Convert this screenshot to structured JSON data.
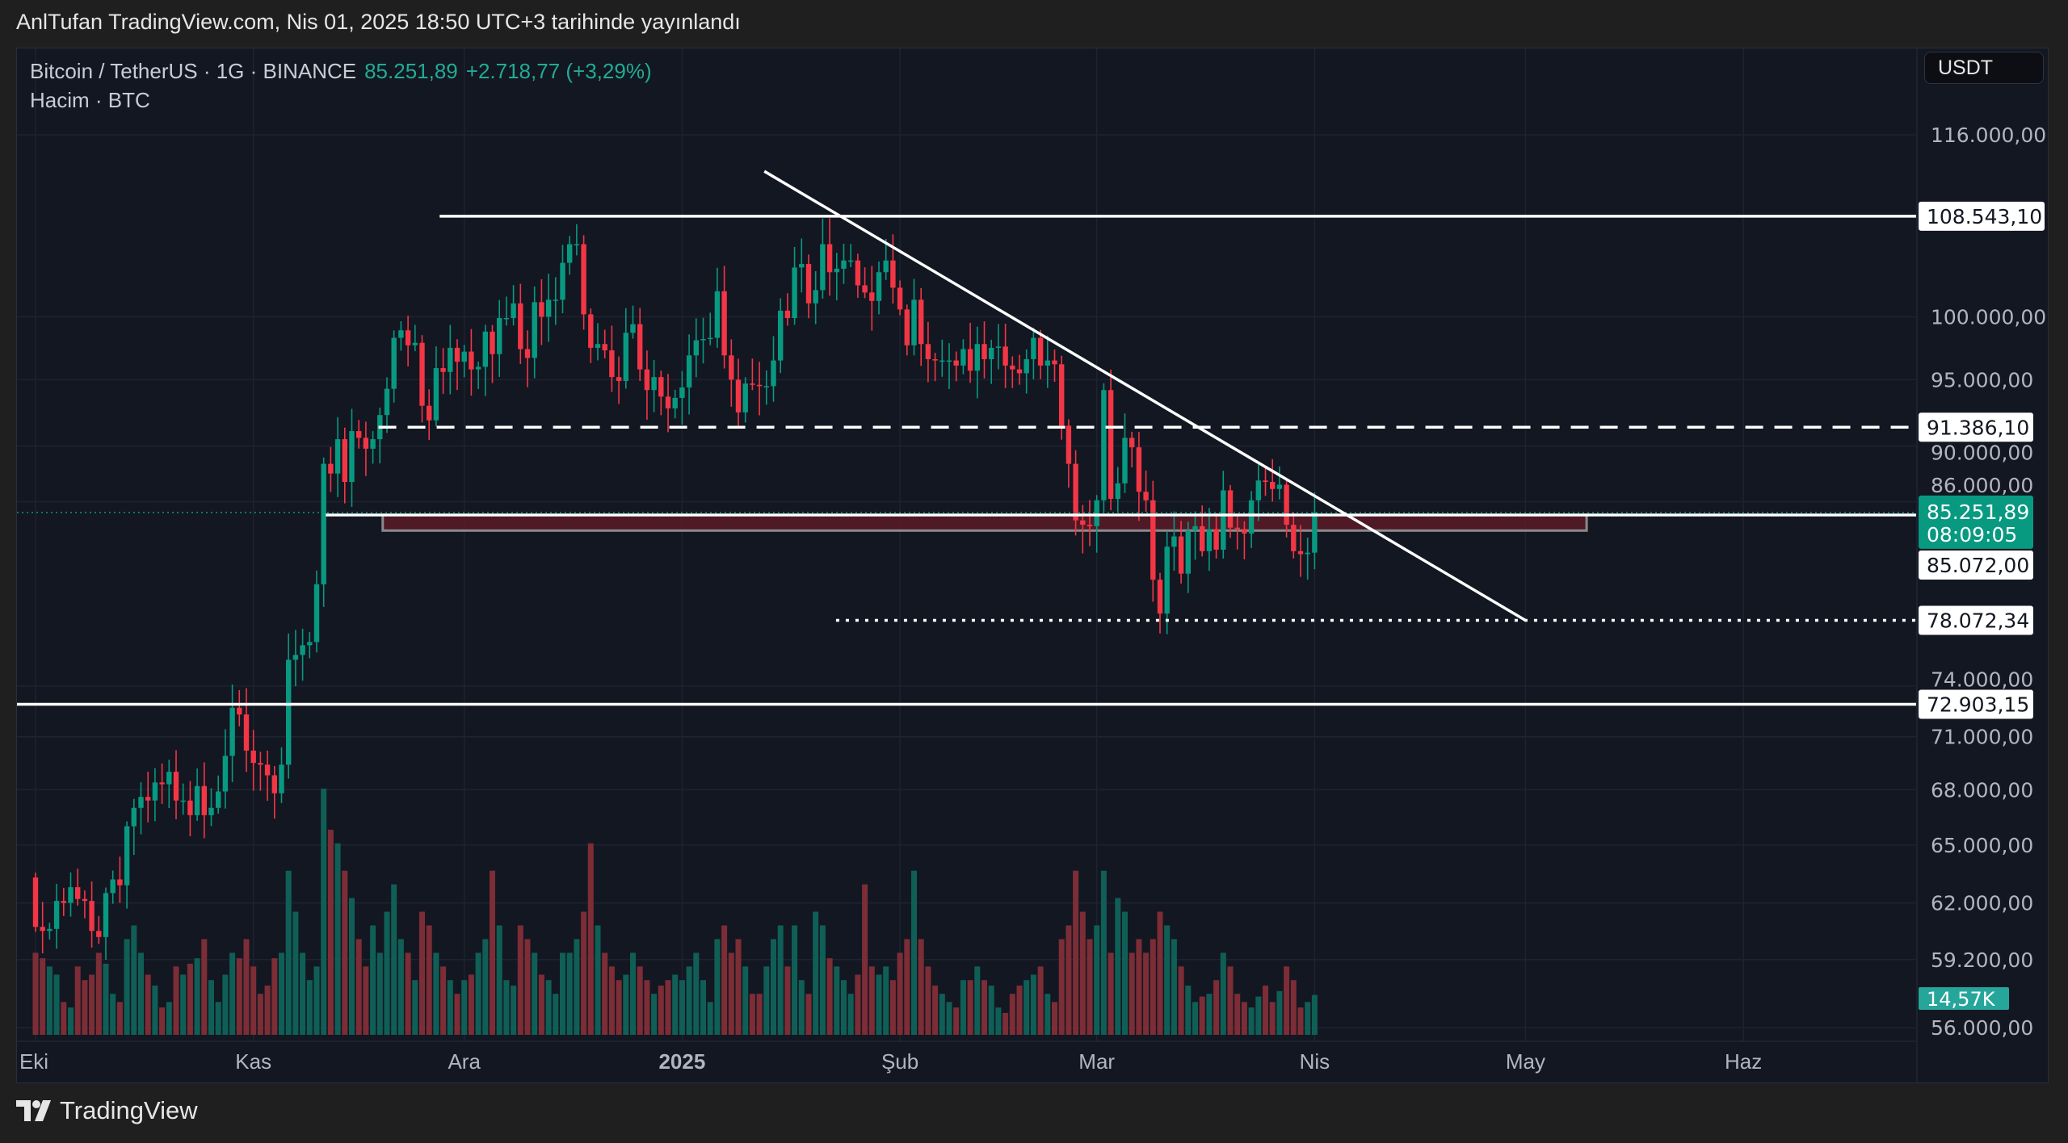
{
  "header": {
    "published": "AnlTufan TradingView.com, Nis 01, 2025 18:50 UTC+3 tarihinde yayınlandı"
  },
  "legend": {
    "symbol": "Bitcoin / TetherUS · 1G · BINANCE",
    "last": "85.251,89",
    "change": "+2.718,77 (+3,29%)",
    "volume_label": "Hacim · BTC"
  },
  "currency_button": "USDT",
  "footer": {
    "brand": "TradingView"
  },
  "colors": {
    "up": "#089981",
    "down": "#f23645",
    "vol_up": "#0f5f57",
    "vol_down": "#7c2d36",
    "pane": "#131722",
    "zone": "#5b1a27"
  },
  "chart_data": {
    "type": "candlestick",
    "title": "Bitcoin / TetherUS · 1G · BINANCE",
    "scale": "log",
    "ylim": [
      54000,
      120000
    ],
    "start_date": "2024-10-01",
    "first_open": 63.3,
    "close_unit": "thousand USDT",
    "closes": [
      60.8,
      60.6,
      60.7,
      62.1,
      62.0,
      62.8,
      62.2,
      62.1,
      60.6,
      60.3,
      62.5,
      63.2,
      62.9,
      66.0,
      67.0,
      67.6,
      67.4,
      68.4,
      68.3,
      69.0,
      67.4,
      67.4,
      66.6,
      68.2,
      66.6,
      67.0,
      67.9,
      69.9,
      72.7,
      72.3,
      70.2,
      69.5,
      69.4,
      68.8,
      67.8,
      69.4,
      75.6,
      75.9,
      76.5,
      76.7,
      80.4,
      88.7,
      88.0,
      90.5,
      87.4,
      91.1,
      90.6,
      89.8,
      90.5,
      92.3,
      94.3,
      98.3,
      98.9,
      97.7,
      97.9,
      93.0,
      91.9,
      95.9,
      95.6,
      97.5,
      96.4,
      97.2,
      95.8,
      96.0,
      98.8,
      97.0,
      99.9,
      99.9,
      101.1,
      97.4,
      96.7,
      101.2,
      100.0,
      101.4,
      101.4,
      104.5,
      106.1,
      106.1,
      100.2,
      97.5,
      97.8,
      97.3,
      95.2,
      94.9,
      98.7,
      99.4,
      95.8,
      94.2,
      95.2,
      93.7,
      92.8,
      93.6,
      94.4,
      96.9,
      98.1,
      98.2,
      98.3,
      102.1,
      96.9,
      95.0,
      92.5,
      94.7,
      94.6,
      94.5,
      94.5,
      96.5,
      100.5,
      99.9,
      104.1,
      104.4,
      101.1,
      102.2,
      106.1,
      103.7,
      104.0,
      104.7,
      104.7,
      102.6,
      102.0,
      101.3,
      103.7,
      104.7,
      102.4,
      100.6,
      97.7,
      101.4,
      97.8,
      96.6,
      96.5,
      96.5,
      96.5,
      96.1,
      97.4,
      95.7,
      97.8,
      96.6,
      97.5,
      97.6,
      96.1,
      95.8,
      95.5,
      96.6,
      98.3,
      96.1,
      96.5,
      96.2,
      91.5,
      88.7,
      84.7,
      84.4,
      84.3,
      86.1,
      94.2,
      86.2,
      87.3,
      90.6,
      89.9,
      86.7,
      86.1,
      80.7,
      78.5,
      82.9,
      83.6,
      81.1,
      84.0,
      84.3,
      82.6,
      84.1,
      82.7,
      86.8,
      84.2,
      84.1,
      83.8,
      86.1,
      87.5,
      87.4,
      86.9,
      87.2,
      84.4,
      82.6,
      82.4,
      82.5,
      85.25
    ],
    "volume_unit": "K BTC",
    "volumes": [
      30,
      28,
      25,
      22,
      12,
      10,
      25,
      20,
      22,
      30,
      26,
      15,
      12,
      35,
      40,
      30,
      22,
      18,
      10,
      12,
      25,
      22,
      26,
      28,
      35,
      20,
      12,
      22,
      30,
      28,
      35,
      25,
      15,
      18,
      28,
      30,
      60,
      45,
      30,
      20,
      25,
      90,
      75,
      70,
      60,
      50,
      35,
      25,
      40,
      30,
      45,
      55,
      35,
      30,
      20,
      45,
      40,
      30,
      25,
      20,
      15,
      20,
      22,
      30,
      35,
      60,
      40,
      20,
      18,
      40,
      35,
      30,
      22,
      20,
      15,
      30,
      30,
      35,
      45,
      70,
      40,
      30,
      25,
      20,
      22,
      30,
      25,
      20,
      15,
      18,
      20,
      22,
      20,
      25,
      30,
      20,
      12,
      35,
      40,
      30,
      35,
      25,
      15,
      15,
      25,
      35,
      40,
      25,
      40,
      20,
      15,
      45,
      40,
      28,
      25,
      20,
      15,
      22,
      55,
      25,
      22,
      25,
      20,
      30,
      35,
      60,
      35,
      25,
      18,
      15,
      12,
      10,
      20,
      20,
      25,
      20,
      18,
      10,
      8,
      15,
      18,
      20,
      22,
      25,
      15,
      12,
      35,
      40,
      60,
      45,
      35,
      40,
      60,
      30,
      50,
      45,
      30,
      35,
      30,
      35,
      45,
      40,
      35,
      25,
      18,
      12,
      14,
      15,
      20,
      30,
      25,
      15,
      12,
      10,
      14,
      18,
      12,
      16,
      25,
      20,
      10,
      12,
      14.57
    ],
    "y_ticks": [
      {
        "value": 116000,
        "label": "116.000,00"
      },
      {
        "value": 100000,
        "label": "100.000,00"
      },
      {
        "value": 95000,
        "label": "95.000,00"
      },
      {
        "value": 90000,
        "label": "90.000,00"
      },
      {
        "value": 86000,
        "label": "86.000,00"
      },
      {
        "value": 74000,
        "label": "74.000,00"
      },
      {
        "value": 71000,
        "label": "71.000,00"
      },
      {
        "value": 68000,
        "label": "68.000,00"
      },
      {
        "value": 65000,
        "label": "65.000,00"
      },
      {
        "value": 62000,
        "label": "62.000,00"
      },
      {
        "value": 59200,
        "label": "59.200,00"
      },
      {
        "value": 56000,
        "label": "56.000,00"
      }
    ],
    "x_ticks": [
      {
        "day": 0,
        "label": "Eki",
        "bold": false
      },
      {
        "day": 31,
        "label": "Kas",
        "bold": false
      },
      {
        "day": 61,
        "label": "Ara",
        "bold": false
      },
      {
        "day": 92,
        "label": "2025",
        "bold": true
      },
      {
        "day": 123,
        "label": "Şub",
        "bold": false
      },
      {
        "day": 151,
        "label": "Mar",
        "bold": false
      },
      {
        "day": 182,
        "label": "Nis",
        "bold": false
      },
      {
        "day": 212,
        "label": "May",
        "bold": false
      },
      {
        "day": 243,
        "label": "Haz",
        "bold": false
      }
    ],
    "drawings": {
      "levels": [
        {
          "price": 108543.1,
          "label": "108.543,10",
          "from_day": 57.5,
          "style": "solid"
        },
        {
          "price": 91386.1,
          "label": "91.386,10",
          "from_day": 48.8,
          "style": "dashed"
        },
        {
          "price": 85072.0,
          "label": "85.072,00",
          "from_day": 41.3,
          "style": "solid"
        },
        {
          "price": 78072.34,
          "label": "78.072,34",
          "from_day": 113.9,
          "style": "dotted"
        },
        {
          "price": 72903.15,
          "label": "72.903,15",
          "from_day": -3,
          "style": "solid"
        }
      ],
      "zone": {
        "from_day": 49.4,
        "to_day": 220.7,
        "top": 85072,
        "bottom": 84000
      },
      "trendline": {
        "from_day": 103.7,
        "from_price": 112600,
        "to_day": 212,
        "to_price": 78072.34
      }
    },
    "last_price": {
      "value": 85251.89,
      "label": "85.251,89",
      "countdown": "08:09:05"
    },
    "last_volume": {
      "label": "14,57K"
    }
  }
}
